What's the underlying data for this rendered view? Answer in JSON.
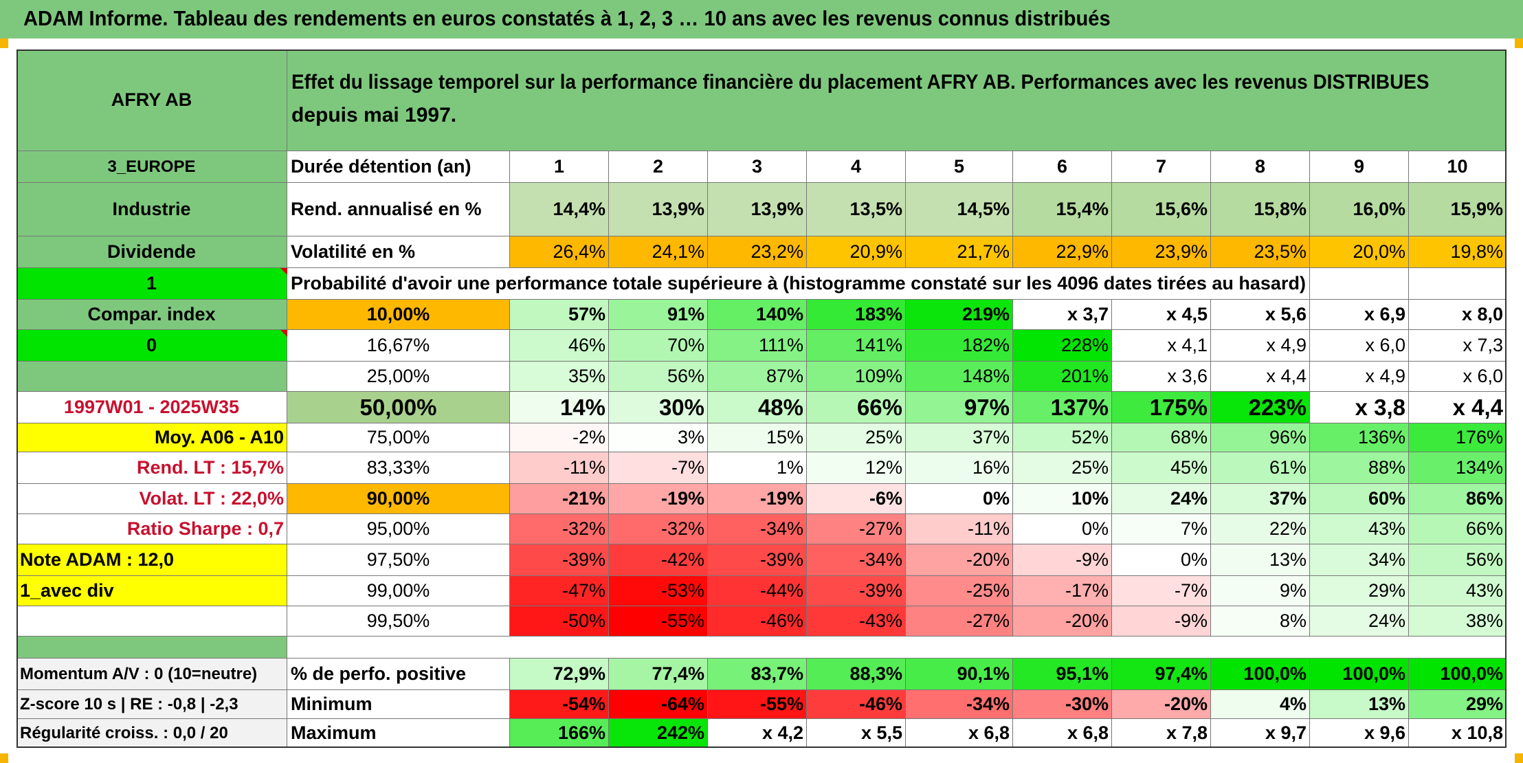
{
  "title": "ADAM Informe. Tableau des rendements en euros constatés à 1, 2, 3 … 10 ans avec les revenus connus distribués",
  "header": {
    "fund": "AFRY AB",
    "description_line1": "Effet du lissage temporel sur la performance financière du placement AFRY AB. Performances avec les revenus DISTRIBUES",
    "description_line2": "depuis mai 1997."
  },
  "left": {
    "region": "3_EUROPE",
    "sector": "Industrie",
    "dividend": "Dividende",
    "flag1": "1",
    "compar_index": "Compar. index",
    "flag0": "0",
    "period": "1997W01 - 2025W35",
    "moy": "Moy. A06 - A10",
    "rend_lt": "Rend. LT :   15,7%",
    "volat_lt": "Volat. LT :   22,0%",
    "sharpe": "Ratio Sharpe :    0,7",
    "note": "Note ADAM : 12,0",
    "avec_div": "1_avec div",
    "momentum": "Momentum A/V : 0 (10=neutre)",
    "zscore": "Z-score 10 s | RE : -0,8 | -2,3",
    "regularite": "Régularité croiss. : 0,0 / 20"
  },
  "labels": {
    "duree": "Durée détention (an)",
    "rend": "Rend. annualisé en %",
    "vol": "Volatilité en %",
    "proba": "Probabilité d'avoir une performance totale supérieure à (histogramme constaté sur les 4096 dates tirées au hasard)",
    "positive": "% de perfo. positive",
    "minimum": "Minimum",
    "maximum": "Maximum"
  },
  "years": [
    "1",
    "2",
    "3",
    "4",
    "5",
    "6",
    "7",
    "8",
    "9",
    "10"
  ],
  "rend": [
    "14,4%",
    "13,9%",
    "13,9%",
    "13,5%",
    "14,5%",
    "15,4%",
    "15,6%",
    "15,8%",
    "16,0%",
    "15,9%"
  ],
  "vol": [
    "26,4%",
    "24,1%",
    "23,2%",
    "20,9%",
    "21,7%",
    "22,9%",
    "23,9%",
    "23,5%",
    "20,0%",
    "19,8%"
  ],
  "prob_rows": [
    {
      "label": "10,00%",
      "values": [
        "57%",
        "91%",
        "140%",
        "183%",
        "219%",
        "x 3,7",
        "x 4,5",
        "x 5,6",
        "x 6,9",
        "x 8,0"
      ]
    },
    {
      "label": "16,67%",
      "values": [
        "46%",
        "70%",
        "111%",
        "141%",
        "182%",
        "228%",
        "x 4,1",
        "x 4,9",
        "x 6,0",
        "x 7,3"
      ]
    },
    {
      "label": "25,00%",
      "values": [
        "35%",
        "56%",
        "87%",
        "109%",
        "148%",
        "201%",
        "x 3,6",
        "x 4,4",
        "x 4,9",
        "x 6,0"
      ]
    },
    {
      "label": "50,00%",
      "values": [
        "14%",
        "30%",
        "48%",
        "66%",
        "97%",
        "137%",
        "175%",
        "223%",
        "x 3,8",
        "x 4,4"
      ]
    },
    {
      "label": "75,00%",
      "values": [
        "-2%",
        "3%",
        "15%",
        "25%",
        "37%",
        "52%",
        "68%",
        "96%",
        "136%",
        "176%"
      ]
    },
    {
      "label": "83,33%",
      "values": [
        "-11%",
        "-7%",
        "1%",
        "12%",
        "16%",
        "25%",
        "45%",
        "61%",
        "88%",
        "134%"
      ]
    },
    {
      "label": "90,00%",
      "values": [
        "-21%",
        "-19%",
        "-19%",
        "-6%",
        "0%",
        "10%",
        "24%",
        "37%",
        "60%",
        "86%"
      ]
    },
    {
      "label": "95,00%",
      "values": [
        "-32%",
        "-32%",
        "-34%",
        "-27%",
        "-11%",
        "0%",
        "7%",
        "22%",
        "43%",
        "66%"
      ]
    },
    {
      "label": "97,50%",
      "values": [
        "-39%",
        "-42%",
        "-39%",
        "-34%",
        "-20%",
        "-9%",
        "0%",
        "13%",
        "34%",
        "56%"
      ]
    },
    {
      "label": "99,00%",
      "values": [
        "-47%",
        "-53%",
        "-44%",
        "-39%",
        "-25%",
        "-17%",
        "-7%",
        "9%",
        "29%",
        "43%"
      ]
    },
    {
      "label": "99,50%",
      "values": [
        "-50%",
        "-55%",
        "-46%",
        "-43%",
        "-27%",
        "-20%",
        "-9%",
        "8%",
        "24%",
        "38%"
      ]
    }
  ],
  "positive": [
    "72,9%",
    "77,4%",
    "83,7%",
    "88,3%",
    "90,1%",
    "95,1%",
    "97,4%",
    "100,0%",
    "100,0%",
    "100,0%"
  ],
  "minimum": [
    "-54%",
    "-64%",
    "-55%",
    "-46%",
    "-34%",
    "-30%",
    "-20%",
    "4%",
    "13%",
    "29%"
  ],
  "maximum": [
    "166%",
    "242%",
    "x 4,2",
    "x 5,5",
    "x 6,8",
    "x 6,8",
    "x 7,8",
    "x 9,7",
    "x 9,6",
    "x 10,8"
  ],
  "colors": {
    "header_green": "#7ec87e",
    "bright_green": "#00e400",
    "orange": "#ffb800",
    "yellow": "#ffff00",
    "rend_green": "#c4e0b0",
    "red": "#ff0000",
    "white": "#ffffff"
  }
}
